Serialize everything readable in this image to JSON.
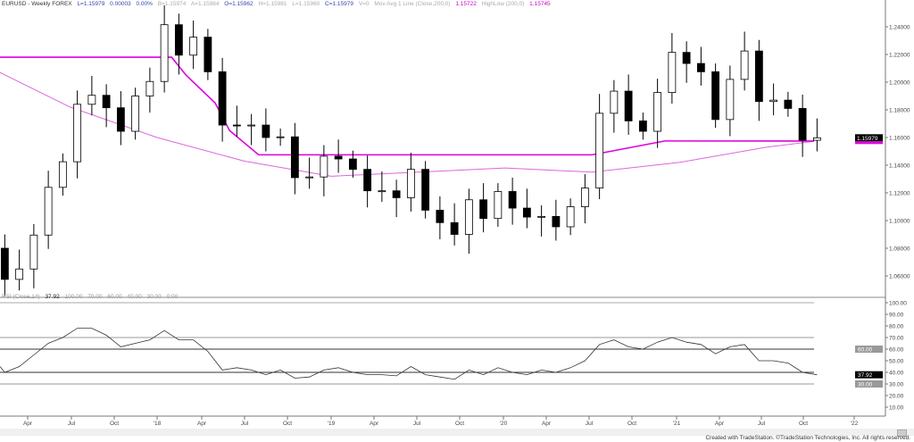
{
  "header": {
    "symbol": "EURUSD - Weekly  FOREX",
    "last": "L=1.15979",
    "change": "0.00003",
    "pct": "0.00%",
    "bid": "B=1.15974",
    "ask": "A=1.15984",
    "open": "O=1.15962",
    "high": "H=1.15981",
    "low": "L=1.15960",
    "close": "C=1.15979",
    "volume": "V=0",
    "ma_label": "Mov Avg 1 Line (Close,200,0)",
    "ma_value": "1.15722",
    "hl_label": "HighLow (200,0)",
    "hl_value": "1.15745"
  },
  "rsi_header": {
    "label": "RSI (Close,14)",
    "value": "37.92",
    "levels": [
      "100.00",
      "70.00",
      "60.00",
      "40.00",
      "30.00",
      "0.00"
    ]
  },
  "footer": "Created with TradeStation. ©TradeStation Technologies, Inc. All rights reserved.",
  "colors": {
    "ma": "#dd66dd",
    "highlow": "#dd00dd",
    "rsi": "#333333",
    "rsi_overbought": "#3344aa"
  },
  "chart_data": [
    {
      "type": "candlestick",
      "title": "EURUSD - Weekly",
      "ylim": [
        1.05,
        1.255
      ],
      "yticks": [
        "1.24000",
        "1.22000",
        "1.20000",
        "1.18000",
        "1.16000",
        "1.14000",
        "1.12000",
        "1.10000",
        "1.08000",
        "1.06000"
      ],
      "xticks": [
        "Apr",
        "Jul",
        "Oct",
        "'18",
        "Apr",
        "Jul",
        "Oct",
        "'19",
        "Apr",
        "Jul",
        "Oct",
        "'20",
        "Apr",
        "Jul",
        "Oct",
        "'21",
        "Apr",
        "Jul",
        "Oct",
        "'22"
      ],
      "last_price_label": "1.15979",
      "periods": [
        "2017-01",
        "2017-02",
        "2017-03",
        "2017-04",
        "2017-05",
        "2017-06",
        "2017-07",
        "2017-08",
        "2017-09",
        "2017-10",
        "2017-11",
        "2017-12",
        "2018-01",
        "2018-02",
        "2018-03",
        "2018-04",
        "2018-05",
        "2018-06",
        "2018-07",
        "2018-08",
        "2018-09",
        "2018-10",
        "2018-11",
        "2018-12",
        "2019-01",
        "2019-02",
        "2019-03",
        "2019-04",
        "2019-05",
        "2019-06",
        "2019-07",
        "2019-08",
        "2019-09",
        "2019-10",
        "2019-11",
        "2019-12",
        "2020-01",
        "2020-02",
        "2020-03",
        "2020-04",
        "2020-05",
        "2020-06",
        "2020-07",
        "2020-08",
        "2020-09",
        "2020-10",
        "2020-11",
        "2020-12",
        "2021-01",
        "2021-02",
        "2021-03",
        "2021-04",
        "2021-05",
        "2021-06",
        "2021-07",
        "2021-08",
        "2021-09",
        "2021-10"
      ],
      "close": [
        1.08,
        1.0575,
        1.065,
        1.0895,
        1.124,
        1.1425,
        1.184,
        1.1905,
        1.1815,
        1.1645,
        1.19,
        1.2005,
        1.2415,
        1.2195,
        1.2325,
        1.2075,
        1.169,
        1.1685,
        1.169,
        1.16,
        1.1605,
        1.131,
        1.1315,
        1.1465,
        1.1445,
        1.137,
        1.1215,
        1.1215,
        1.1165,
        1.137,
        1.1075,
        1.0985,
        1.09,
        1.115,
        1.1015,
        1.121,
        1.109,
        1.1025,
        1.103,
        1.0955,
        1.11,
        1.1235,
        1.1775,
        1.1935,
        1.172,
        1.1645,
        1.1925,
        1.2215,
        1.2135,
        1.2075,
        1.173,
        1.202,
        1.2225,
        1.186,
        1.187,
        1.181,
        1.158,
        1.1598
      ],
      "series": [
        {
          "name": "Mov Avg 1 Line (Close,200,0)",
          "type": "line",
          "x": [
            "2017-01",
            "2017-07",
            "2018-01",
            "2018-07",
            "2019-01",
            "2019-07",
            "2020-01",
            "2020-07",
            "2021-01",
            "2021-07",
            "2021-10"
          ],
          "values": [
            1.207,
            1.182,
            1.16,
            1.143,
            1.132,
            1.135,
            1.138,
            1.135,
            1.142,
            1.153,
            1.15722
          ]
        },
        {
          "name": "HighLow (200,0)",
          "type": "step",
          "x": [
            "2017-01",
            "2018-02",
            "2018-03",
            "2018-05",
            "2018-06",
            "2018-08",
            "2020-07",
            "2020-12",
            "2021-10"
          ],
          "values": [
            1.218,
            1.218,
            1.205,
            1.185,
            1.165,
            1.1475,
            1.1475,
            1.1575,
            1.15745
          ]
        }
      ]
    },
    {
      "type": "line",
      "title": "RSI (Close,14)",
      "ylim": [
        0,
        100
      ],
      "yticks": [
        "100.00",
        "90.00",
        "80.00",
        "70.00",
        "60.00",
        "50.00",
        "40.00",
        "30.00",
        "20.00",
        "10.00"
      ],
      "levels": [
        70,
        60,
        40,
        30
      ],
      "level_labels": [
        "60.00",
        "30.00"
      ],
      "last_value_label": "37.92",
      "values": [
        45,
        40,
        45,
        55,
        65,
        70,
        78,
        78,
        72,
        62,
        65,
        68,
        76,
        68,
        68,
        58,
        42,
        44,
        42,
        38,
        42,
        35,
        36,
        42,
        44,
        40,
        38,
        38,
        37,
        45,
        38,
        36,
        34,
        42,
        38,
        44,
        40,
        38,
        42,
        40,
        44,
        50,
        64,
        68,
        62,
        60,
        66,
        70,
        66,
        64,
        56,
        62,
        64,
        50,
        50,
        48,
        40,
        37.92
      ]
    }
  ]
}
